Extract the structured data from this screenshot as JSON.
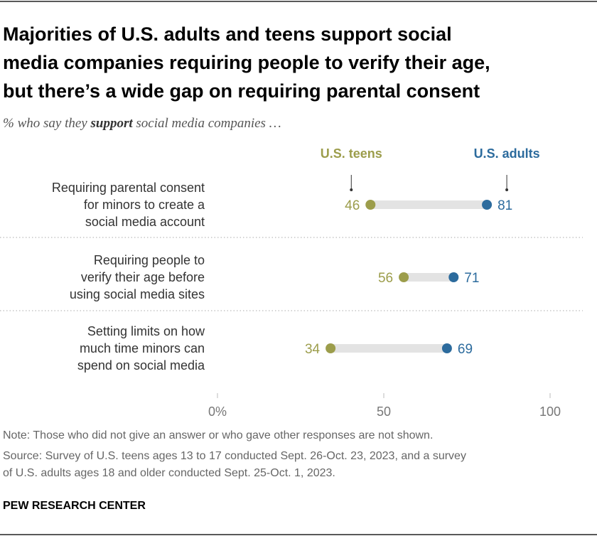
{
  "chart_data": {
    "type": "dot",
    "title": [
      "Majorities of U.S. adults and teens support social",
      "media companies requiring people to verify their age,",
      "but there’s a wide gap on requiring parental consent"
    ],
    "subtitle": [
      "% who say they",
      "support",
      "social media companies …"
    ],
    "categories": [
      [
        "Requiring parental consent",
        "for minors to create a",
        "social media account"
      ],
      [
        "Requiring people to",
        "verify their age before",
        "using social media sites"
      ],
      [
        "Setting limits on how",
        "much time minors can",
        "spend on social media"
      ]
    ],
    "series": [
      {
        "name": "U.S. teens",
        "color": "#9c9d4b",
        "values": [
          46,
          56,
          34
        ]
      },
      {
        "name": "U.S. adults",
        "color": "#2c6b9d",
        "values": [
          81,
          71,
          69
        ]
      }
    ],
    "xlim": [
      0,
      100
    ],
    "xticks": [
      {
        "value": 0,
        "label": "0%"
      },
      50,
      100
    ],
    "note": "Note: Those who did not give an answer or who gave other responses are not shown.",
    "source": [
      "Source: Survey of U.S. teens ages 13 to 17 conducted Sept. 26-Oct. 23, 2023, and a survey",
      "of U.S. adults ages 18 and older conducted Sept. 25-Oct. 1, 2023."
    ],
    "credit": "PEW RESEARCH CENTER"
  }
}
